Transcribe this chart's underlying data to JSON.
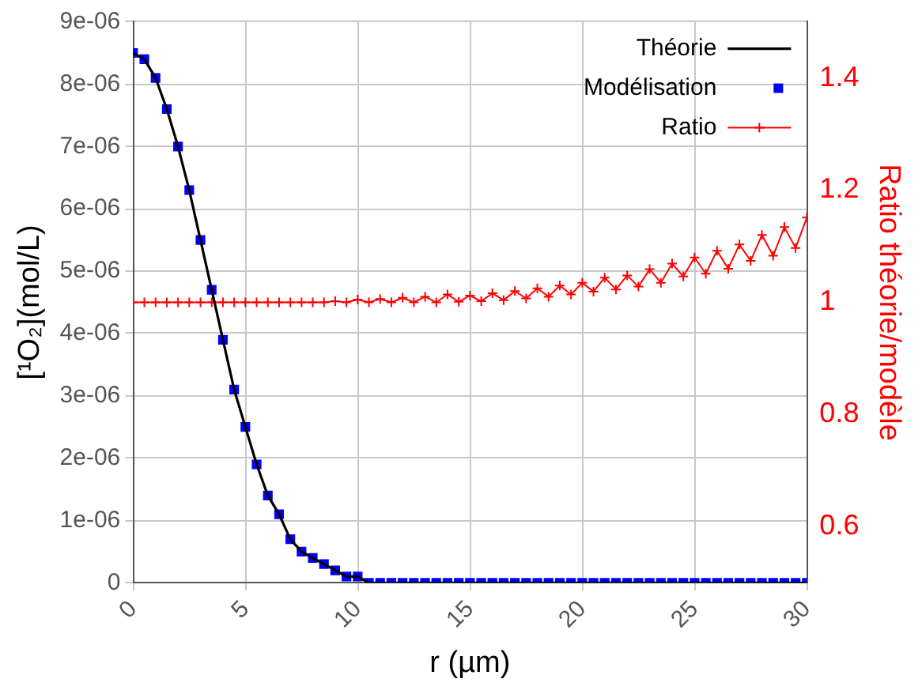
{
  "chart_data": {
    "type": "line",
    "xlabel": "r (µm)",
    "ylabel": "[¹O₂](mol/L)",
    "y2label": "Ratio théorie/modèle",
    "x": [
      0,
      0.5,
      1,
      1.5,
      2,
      2.5,
      3,
      3.5,
      4,
      4.5,
      5,
      5.5,
      6,
      6.5,
      7,
      7.5,
      8,
      8.5,
      9,
      9.5,
      10,
      10.5,
      11,
      11.5,
      12,
      12.5,
      13,
      13.5,
      14,
      14.5,
      15,
      15.5,
      16,
      16.5,
      17,
      17.5,
      18,
      18.5,
      19,
      19.5,
      20,
      20.5,
      21,
      21.5,
      22,
      22.5,
      23,
      23.5,
      24,
      24.5,
      25,
      25.5,
      26,
      26.5,
      27,
      27.5,
      28,
      28.5,
      29,
      29.5,
      30
    ],
    "series": [
      {
        "name": "Théorie",
        "type": "line",
        "color": "#000000",
        "marker": "none",
        "line_style": "solid",
        "values": [
          8.5e-06,
          8.4e-06,
          8.1e-06,
          7.6e-06,
          7e-06,
          6.3e-06,
          5.5e-06,
          4.7e-06,
          3.9e-06,
          3.1e-06,
          2.5e-06,
          1.9e-06,
          1.4e-06,
          1.1e-06,
          7e-07,
          5e-07,
          4e-07,
          3e-07,
          2e-07,
          1e-07,
          1e-07,
          0,
          0,
          0,
          0,
          0,
          0,
          0,
          0,
          0,
          0,
          0,
          0,
          0,
          0,
          0,
          0,
          0,
          0,
          0,
          0,
          0,
          0,
          0,
          0,
          0,
          0,
          0,
          0,
          0,
          0,
          0,
          0,
          0,
          0,
          0,
          0,
          0,
          0,
          0,
          0
        ]
      },
      {
        "name": "Modélisation",
        "type": "scatter",
        "color": "#0000ff",
        "marker": "square",
        "values": [
          8.5e-06,
          8.4e-06,
          8.1e-06,
          7.6e-06,
          7e-06,
          6.3e-06,
          5.5e-06,
          4.7e-06,
          3.9e-06,
          3.1e-06,
          2.5e-06,
          1.9e-06,
          1.4e-06,
          1.1e-06,
          7e-07,
          5e-07,
          4e-07,
          3e-07,
          2e-07,
          1e-07,
          1e-07,
          0,
          0,
          0,
          0,
          0,
          0,
          0,
          0,
          0,
          0,
          0,
          0,
          0,
          0,
          0,
          0,
          0,
          0,
          0,
          0,
          0,
          0,
          0,
          0,
          0,
          0,
          0,
          0,
          0,
          0,
          0,
          0,
          0,
          0,
          0,
          0,
          0,
          0,
          0,
          0
        ]
      },
      {
        "name": "Ratio",
        "type": "line",
        "axis": "y2",
        "color": "#ff0000",
        "marker": "cross",
        "line_style": "solid",
        "values": [
          1,
          1,
          1,
          1,
          1,
          1,
          1,
          1,
          1,
          1,
          1,
          1,
          1,
          1,
          1,
          1,
          1,
          1,
          1.002,
          1,
          1.005,
          1,
          1.006,
          1,
          1.008,
          1,
          1.01,
          1,
          1.014,
          1.001,
          1.012,
          1.002,
          1.016,
          1.004,
          1.02,
          1.007,
          1.025,
          1.01,
          1.03,
          1.014,
          1.035,
          1.019,
          1.044,
          1.023,
          1.048,
          1.028,
          1.059,
          1.035,
          1.069,
          1.046,
          1.08,
          1.051,
          1.092,
          1.06,
          1.103,
          1.074,
          1.12,
          1.083,
          1.134,
          1.097,
          1.151
        ]
      }
    ],
    "xlim": [
      0,
      30
    ],
    "xticks": [
      0,
      5,
      10,
      15,
      20,
      25,
      30
    ],
    "ylim": [
      0,
      9e-06
    ],
    "yticks": [
      0,
      {
        "value": 1e-06,
        "label": "1e-06"
      },
      {
        "value": 2e-06,
        "label": "2e-06"
      },
      {
        "value": 3e-06,
        "label": "3e-06"
      },
      {
        "value": 4e-06,
        "label": "4e-06"
      },
      {
        "value": 5e-06,
        "label": "5e-06"
      },
      {
        "value": 6e-06,
        "label": "6e-06"
      },
      {
        "value": 7e-06,
        "label": "7e-06"
      },
      {
        "value": 8e-06,
        "label": "8e-06"
      },
      {
        "value": 9e-06,
        "label": "9e-06"
      }
    ],
    "y2lim": [
      0.5,
      1.5
    ],
    "y2ticks": [
      0.6,
      0.8,
      1,
      1.2,
      1.4
    ],
    "grid": true,
    "legend": "top right"
  }
}
